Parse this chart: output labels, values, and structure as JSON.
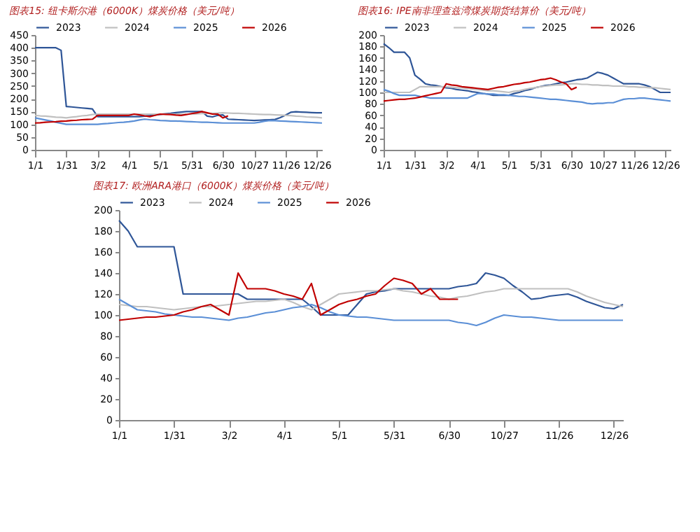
{
  "chart_data": [
    {
      "type": "line",
      "title": "图表15: 纽卡斯尔港（6000K）煤炭价格（美元/吨）",
      "legend": "top",
      "grid": false,
      "categories": [
        "1/1",
        null,
        null,
        null,
        null,
        null,
        "1/31",
        null,
        null,
        null,
        null,
        null,
        "3/2",
        null,
        null,
        null,
        null,
        null,
        "4/1",
        null,
        null,
        null,
        null,
        null,
        "5/1",
        null,
        null,
        null,
        null,
        null,
        "5/31",
        null,
        null,
        null,
        null,
        null,
        "6/30",
        null,
        null,
        null,
        null,
        null,
        "10/27",
        null,
        null,
        null,
        null,
        null,
        "11/26",
        null,
        null,
        null,
        null,
        null,
        "12/26",
        null
      ],
      "ylim": [
        0,
        450
      ],
      "yticks": [
        0,
        50,
        100,
        150,
        200,
        250,
        300,
        350,
        400,
        450
      ],
      "series": [
        {
          "name": "2023",
          "color": "#2e5597",
          "values": [
            400,
            400,
            400,
            400,
            400,
            390,
            170,
            168,
            166,
            164,
            162,
            160,
            130,
            130,
            130,
            130,
            130,
            130,
            130,
            130,
            130,
            132,
            134,
            137,
            139,
            141,
            143,
            146,
            148,
            150,
            150,
            150,
            150,
            132,
            129,
            135,
            137,
            120,
            119,
            118,
            117,
            116,
            115,
            116,
            117,
            118,
            119,
            126,
            136,
            147,
            149,
            148,
            147,
            146,
            145,
            145
          ]
        },
        {
          "name": "2024",
          "color": "#c0c0c0",
          "values": [
            135,
            133,
            132,
            130,
            128,
            127,
            125,
            128,
            130,
            133,
            135,
            138,
            140,
            140,
            140,
            140,
            140,
            140,
            140,
            140,
            140,
            140,
            140,
            140,
            140,
            140,
            140,
            140,
            140,
            140,
            140,
            141,
            142,
            143,
            143,
            144,
            145,
            144,
            143,
            143,
            142,
            141,
            140,
            139,
            138,
            138,
            137,
            136,
            135,
            134,
            132,
            131,
            129,
            128,
            127,
            125
          ]
        },
        {
          "name": "2025",
          "color": "#5b8fd6",
          "values": [
            125,
            121,
            117,
            113,
            108,
            104,
            100,
            100,
            100,
            100,
            100,
            100,
            100,
            102,
            103,
            105,
            107,
            108,
            110,
            113,
            117,
            120,
            118,
            117,
            115,
            114,
            113,
            113,
            112,
            111,
            110,
            109,
            108,
            108,
            107,
            106,
            105,
            105,
            105,
            105,
            105,
            105,
            105,
            108,
            112,
            115,
            114,
            113,
            112,
            111,
            110,
            109,
            108,
            107,
            106,
            105
          ]
        },
        {
          "name": "2026",
          "color": "#c00000",
          "values": [
            105,
            106,
            108,
            109,
            110,
            112,
            113,
            115,
            116,
            118,
            119,
            120,
            135,
            135,
            135,
            135,
            135,
            135,
            135,
            140,
            137,
            133,
            130,
            135,
            140,
            139,
            138,
            136,
            135,
            138,
            142,
            145,
            150,
            145,
            140,
            140,
            125,
            133,
            null,
            null,
            null,
            null,
            null,
            null,
            null,
            null,
            null,
            null,
            null,
            null,
            null,
            null,
            null,
            null,
            null,
            null
          ]
        }
      ]
    },
    {
      "type": "line",
      "title": "图表16: IPE南非理查兹湾煤炭期货结算价（美元/吨）",
      "legend": "top",
      "grid": false,
      "categories": [
        "1/1",
        null,
        null,
        null,
        null,
        null,
        "1/31",
        null,
        null,
        null,
        null,
        null,
        "3/2",
        null,
        null,
        null,
        null,
        null,
        "4/1",
        null,
        null,
        null,
        null,
        null,
        "5/1",
        null,
        null,
        null,
        null,
        null,
        "5/31",
        null,
        null,
        null,
        null,
        null,
        "6/30",
        null,
        null,
        null,
        null,
        null,
        "10/27",
        null,
        null,
        null,
        null,
        null,
        "11/26",
        null,
        null,
        null,
        null,
        null,
        "12/26",
        null
      ],
      "ylim": [
        0,
        200
      ],
      "yticks": [
        0,
        20,
        40,
        60,
        80,
        100,
        120,
        140,
        160,
        180,
        200
      ],
      "series": [
        {
          "name": "2023",
          "color": "#2e5597",
          "values": [
            185,
            178,
            170,
            170,
            170,
            160,
            130,
            123,
            115,
            113,
            112,
            110,
            108,
            107,
            105,
            104,
            103,
            101,
            100,
            98,
            97,
            95,
            95,
            95,
            95,
            98,
            100,
            103,
            105,
            108,
            110,
            112,
            113,
            115,
            117,
            118,
            120,
            122,
            123,
            125,
            130,
            135,
            133,
            130,
            125,
            120,
            115,
            115,
            115,
            115,
            113,
            110,
            105,
            100,
            100,
            100
          ]
        },
        {
          "name": "2024",
          "color": "#c0c0c0",
          "values": [
            100,
            100,
            100,
            100,
            100,
            100,
            105,
            110,
            110,
            110,
            110,
            110,
            110,
            109,
            108,
            108,
            107,
            106,
            105,
            104,
            103,
            103,
            102,
            101,
            100,
            102,
            103,
            105,
            107,
            108,
            110,
            111,
            112,
            113,
            113,
            114,
            115,
            115,
            114,
            114,
            113,
            113,
            112,
            112,
            111,
            111,
            111,
            110,
            110,
            109,
            109,
            108,
            108,
            107,
            106,
            105
          ]
        },
        {
          "name": "2025",
          "color": "#5b8fd6",
          "values": [
            105,
            102,
            98,
            95,
            95,
            95,
            95,
            93,
            92,
            90,
            90,
            90,
            90,
            90,
            90,
            90,
            90,
            94,
            98,
            98,
            97,
            97,
            96,
            96,
            95,
            94,
            93,
            93,
            92,
            91,
            90,
            89,
            88,
            88,
            87,
            86,
            85,
            84,
            83,
            81,
            80,
            81,
            81,
            82,
            82,
            85,
            88,
            89,
            89,
            90,
            90,
            89,
            88,
            87,
            86,
            85
          ]
        },
        {
          "name": "2026",
          "color": "#c00000",
          "values": [
            85,
            86,
            87,
            88,
            88,
            89,
            90,
            92,
            94,
            96,
            98,
            100,
            115,
            113,
            112,
            110,
            109,
            108,
            107,
            106,
            105,
            107,
            109,
            110,
            112,
            114,
            115,
            117,
            118,
            120,
            122,
            123,
            125,
            122,
            118,
            115,
            105,
            109,
            null,
            null,
            null,
            null,
            null,
            null,
            null,
            null,
            null,
            null,
            null,
            null,
            null,
            null,
            null,
            null,
            null,
            null
          ]
        }
      ]
    },
    {
      "type": "line",
      "title": "图表17: 欧洲ARA港口（6000K）煤炭价格（美元/吨）",
      "legend": "top",
      "grid": false,
      "categories": [
        "1/1",
        null,
        null,
        null,
        null,
        null,
        "1/31",
        null,
        null,
        null,
        null,
        null,
        "3/2",
        null,
        null,
        null,
        null,
        null,
        "4/1",
        null,
        null,
        null,
        null,
        null,
        "5/1",
        null,
        null,
        null,
        null,
        null,
        "5/31",
        null,
        null,
        null,
        null,
        null,
        "6/30",
        null,
        null,
        null,
        null,
        null,
        "10/27",
        null,
        null,
        null,
        null,
        null,
        "11/26",
        null,
        null,
        null,
        null,
        null,
        "12/26",
        null
      ],
      "ylim": [
        0,
        200
      ],
      "yticks": [
        0,
        20,
        40,
        60,
        80,
        100,
        120,
        140,
        160,
        180,
        200
      ],
      "series": [
        {
          "name": "2023",
          "color": "#2e5597",
          "values": [
            190,
            180,
            165,
            165,
            165,
            165,
            165,
            120,
            120,
            120,
            120,
            120,
            120,
            120,
            115,
            115,
            115,
            115,
            115,
            115,
            115,
            108,
            100,
            100,
            100,
            100,
            110,
            120,
            122,
            123,
            125,
            125,
            125,
            125,
            125,
            125,
            125,
            127,
            128,
            130,
            140,
            138,
            135,
            128,
            122,
            115,
            116,
            118,
            119,
            120,
            117,
            113,
            110,
            107,
            106,
            110
          ]
        },
        {
          "name": "2024",
          "color": "#c0c0c0",
          "values": [
            110,
            109,
            108,
            108,
            107,
            106,
            105,
            106,
            107,
            108,
            108,
            109,
            110,
            111,
            112,
            113,
            113,
            114,
            115,
            112,
            108,
            105,
            110,
            115,
            120,
            121,
            122,
            123,
            123,
            124,
            125,
            123,
            122,
            120,
            118,
            117,
            115,
            117,
            118,
            120,
            122,
            123,
            125,
            125,
            125,
            125,
            125,
            125,
            125,
            125,
            122,
            118,
            115,
            112,
            110,
            108
          ]
        },
        {
          "name": "2025",
          "color": "#5b8fd6",
          "values": [
            115,
            110,
            105,
            104,
            103,
            101,
            100,
            99,
            98,
            98,
            97,
            96,
            95,
            97,
            98,
            100,
            102,
            103,
            105,
            107,
            108,
            110,
            107,
            103,
            100,
            99,
            98,
            98,
            97,
            96,
            95,
            95,
            95,
            95,
            95,
            95,
            95,
            93,
            92,
            90,
            93,
            97,
            100,
            99,
            98,
            98,
            97,
            96,
            95,
            95,
            95,
            95,
            95,
            95,
            95,
            95
          ]
        },
        {
          "name": "2026",
          "color": "#c00000",
          "values": [
            95,
            96,
            97,
            98,
            98,
            99,
            100,
            103,
            105,
            108,
            110,
            105,
            100,
            140,
            125,
            125,
            125,
            123,
            120,
            118,
            115,
            130,
            100,
            105,
            110,
            113,
            115,
            118,
            120,
            128,
            135,
            133,
            130,
            120,
            125,
            115,
            115,
            115,
            null,
            null,
            null,
            null,
            null,
            null,
            null,
            null,
            null,
            null,
            null,
            null,
            null,
            null,
            null,
            null,
            null,
            null
          ]
        }
      ]
    }
  ]
}
